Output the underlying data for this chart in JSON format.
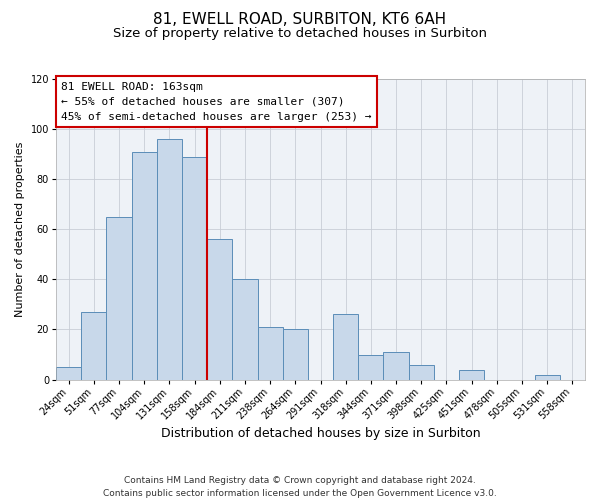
{
  "title": "81, EWELL ROAD, SURBITON, KT6 6AH",
  "subtitle": "Size of property relative to detached houses in Surbiton",
  "xlabel": "Distribution of detached houses by size in Surbiton",
  "ylabel": "Number of detached properties",
  "bar_color": "#c8d8ea",
  "bar_edge_color": "#5b8db8",
  "background_color": "#eef2f7",
  "grid_color": "#c8cdd6",
  "categories": [
    "24sqm",
    "51sqm",
    "77sqm",
    "104sqm",
    "131sqm",
    "158sqm",
    "184sqm",
    "211sqm",
    "238sqm",
    "264sqm",
    "291sqm",
    "318sqm",
    "344sqm",
    "371sqm",
    "398sqm",
    "425sqm",
    "451sqm",
    "478sqm",
    "505sqm",
    "531sqm",
    "558sqm"
  ],
  "values": [
    5,
    27,
    65,
    91,
    96,
    89,
    56,
    40,
    21,
    20,
    0,
    26,
    10,
    11,
    6,
    0,
    4,
    0,
    0,
    2,
    0
  ],
  "ylim": [
    0,
    120
  ],
  "yticks": [
    0,
    20,
    40,
    60,
    80,
    100,
    120
  ],
  "property_line_color": "#cc0000",
  "property_line_index": 5.5,
  "annotation_box_text": "81 EWELL ROAD: 163sqm\n← 55% of detached houses are smaller (307)\n45% of semi-detached houses are larger (253) →",
  "annotation_box_edge_color": "#cc0000",
  "footer_line1": "Contains HM Land Registry data © Crown copyright and database right 2024.",
  "footer_line2": "Contains public sector information licensed under the Open Government Licence v3.0.",
  "title_fontsize": 11,
  "subtitle_fontsize": 9.5,
  "xlabel_fontsize": 9,
  "ylabel_fontsize": 8,
  "tick_fontsize": 7,
  "annotation_fontsize": 8,
  "footer_fontsize": 6.5
}
